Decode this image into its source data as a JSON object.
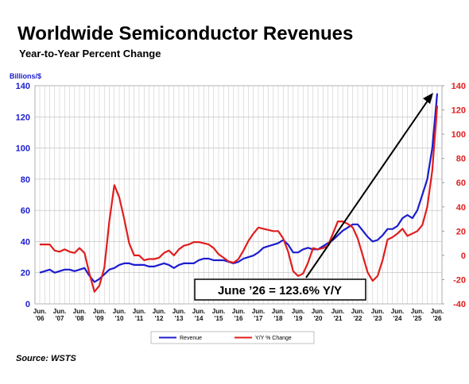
{
  "chart_data": {
    "type": "line",
    "title": "Worldwide Semiconductor Revenues",
    "subtitle": "Year-to-Year Percent Change",
    "y_label": "Billions/$",
    "categories": [
      "Jun. '06",
      null,
      null,
      null,
      "Jun. '07",
      null,
      null,
      null,
      "Jun. '08",
      null,
      null,
      null,
      "Jun. '09",
      null,
      null,
      null,
      "Jun. '10",
      null,
      null,
      null,
      "Jun. '11",
      null,
      null,
      null,
      "Jun. '12",
      null,
      null,
      null,
      "Jun. '13",
      null,
      null,
      null,
      "Jun. '14",
      null,
      null,
      null,
      "Jun. '15",
      null,
      null,
      null,
      "Jun. '16",
      null,
      null,
      null,
      "Jun. '17",
      null,
      null,
      null,
      "Jun. '18",
      null,
      null,
      null,
      "Jun. '19",
      null,
      null,
      null,
      "Jun. '20",
      null,
      null,
      null,
      "Jun. '21",
      null,
      null,
      null,
      "Jun. '22",
      null,
      null,
      null,
      "Jun. '23",
      null,
      null,
      null,
      "Jun. '24",
      null,
      null,
      null,
      "Jun. '25",
      null,
      null,
      null,
      "Jun. '26"
    ],
    "series": [
      {
        "name": "Revenue",
        "color": "#1c1ccf",
        "axis": "y",
        "values": [
          20,
          21,
          22,
          20,
          21,
          22,
          22,
          21,
          22,
          23,
          18,
          14,
          16,
          19,
          22,
          23,
          25,
          26,
          26,
          25,
          25,
          25,
          24,
          24,
          25,
          26,
          25,
          23,
          25,
          26,
          26,
          26,
          28,
          29,
          29,
          28,
          28,
          28,
          27,
          26,
          27,
          29,
          30,
          31,
          33,
          36,
          37,
          38,
          39,
          41,
          38,
          33,
          33,
          35,
          36,
          35,
          35,
          37,
          39,
          41,
          44,
          47,
          49,
          51,
          51,
          47,
          43,
          40,
          41,
          44,
          48,
          48,
          50,
          55,
          57,
          55,
          60,
          70,
          80,
          100,
          135
        ]
      },
      {
        "name": "Y/Y % Change",
        "color": "#e01e1e",
        "axis": "y2",
        "values": [
          9,
          9,
          9,
          4,
          3,
          5,
          3,
          2,
          6,
          2,
          -15,
          -30,
          -25,
          -10,
          28,
          58,
          48,
          30,
          10,
          0,
          0,
          -4,
          -3,
          -3,
          -2,
          2,
          4,
          0,
          5,
          8,
          9,
          11,
          11,
          10,
          9,
          6,
          1,
          -2,
          -5,
          -6,
          -3,
          4,
          12,
          18,
          23,
          22,
          21,
          20,
          20,
          14,
          3,
          -13,
          -17,
          -15,
          -6,
          6,
          5,
          6,
          8,
          18,
          28,
          28,
          26,
          23,
          14,
          0,
          -14,
          -21,
          -17,
          -4,
          13,
          15,
          18,
          22,
          16,
          18,
          20,
          25,
          40,
          70,
          123.6
        ]
      }
    ],
    "ylim": [
      0,
      140
    ],
    "yticks": [
      0,
      20,
      40,
      60,
      80,
      100,
      120,
      140
    ],
    "y2lim": [
      -40,
      140
    ],
    "y2ticks": [
      -40,
      -20,
      0,
      20,
      40,
      60,
      80,
      100,
      120,
      140
    ],
    "grid": true,
    "legend": "bottom",
    "annotation": "June ’26 = 123.6% Y/Y",
    "source": "Source: WSTS"
  }
}
